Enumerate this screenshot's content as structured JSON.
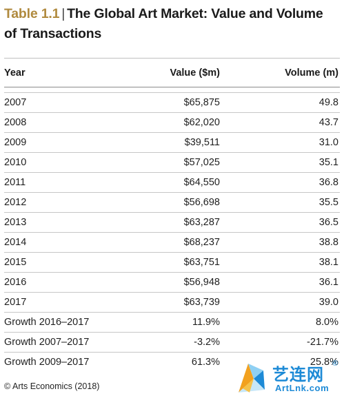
{
  "title": {
    "number": "Table 1.1",
    "separator": "|",
    "text": "The Global Art Market: Value and Volume of Transactions"
  },
  "table": {
    "headers": [
      "Year",
      "Value ($m)",
      "Volume (m)"
    ],
    "rows": [
      [
        "2007",
        "$65,875",
        "49.8"
      ],
      [
        "2008",
        "$62,020",
        "43.7"
      ],
      [
        "2009",
        "$39,511",
        "31.0"
      ],
      [
        "2010",
        "$57,025",
        "35.1"
      ],
      [
        "2011",
        "$64,550",
        "36.8"
      ],
      [
        "2012",
        "$56,698",
        "35.5"
      ],
      [
        "2013",
        "$63,287",
        "36.5"
      ],
      [
        "2014",
        "$68,237",
        "38.8"
      ],
      [
        "2015",
        "$63,751",
        "38.1"
      ],
      [
        "2016",
        "$56,948",
        "36.1"
      ],
      [
        "2017",
        "$63,739",
        "39.0"
      ],
      [
        "Growth 2016–2017",
        "11.9%",
        "8.0%"
      ],
      [
        "Growth 2007–2017",
        "-3.2%",
        "-21.7%"
      ],
      [
        "Growth 2009–2017",
        "61.3%",
        "25.8%"
      ]
    ]
  },
  "source": "© Arts Economics (2018)",
  "watermark": {
    "chinese": "艺连网",
    "registered": "®",
    "site": "ArtLnk.com"
  },
  "colors": {
    "title_number": "#b08a3e",
    "watermark": "#1d8ad6"
  }
}
